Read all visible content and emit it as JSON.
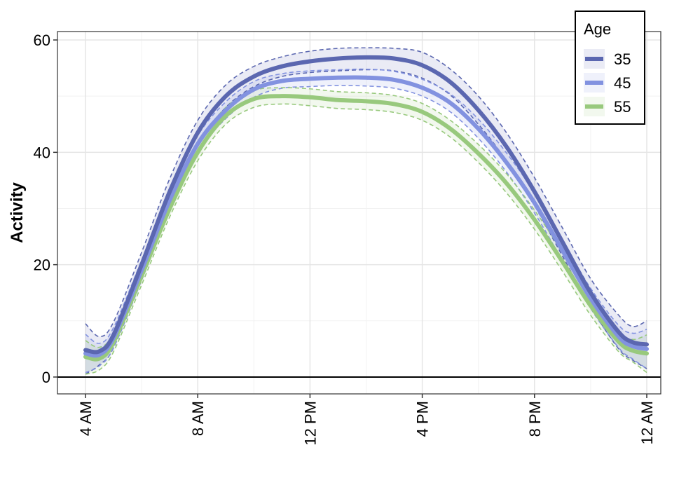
{
  "chart_data": {
    "type": "line",
    "title": "",
    "xlabel": "",
    "ylabel": "Activity",
    "x_unit": "hour of day",
    "xlim": [
      4,
      24
    ],
    "ylim": [
      -3,
      61.5
    ],
    "x_ticks": [
      {
        "value": 4,
        "label": "4 AM"
      },
      {
        "value": 8,
        "label": "8 AM"
      },
      {
        "value": 12,
        "label": "12 PM"
      },
      {
        "value": 16,
        "label": "4 PM"
      },
      {
        "value": 20,
        "label": "8 PM"
      },
      {
        "value": 24,
        "label": "12 AM"
      }
    ],
    "y_ticks": [
      {
        "value": 0,
        "label": "0"
      },
      {
        "value": 20,
        "label": "20"
      },
      {
        "value": 40,
        "label": "40"
      },
      {
        "value": 60,
        "label": "60"
      }
    ],
    "grid": true,
    "reference_line_y": 0,
    "legend": {
      "title": "Age",
      "position": "top-right"
    },
    "x": [
      4,
      4.5,
      5,
      6,
      7,
      8,
      9,
      10,
      11,
      12,
      13,
      14,
      15,
      16,
      17,
      18,
      19,
      20,
      21,
      22,
      23,
      23.5,
      24
    ],
    "series": [
      {
        "name": "35",
        "color": "#5b67b0",
        "values": [
          4.8,
          4.6,
          7.5,
          20,
          33,
          43.5,
          50,
          53.5,
          55.3,
          56.2,
          56.7,
          56.9,
          56.7,
          55.5,
          52.5,
          47.5,
          41,
          33,
          24,
          15,
          8,
          6.2,
          5.8
        ],
        "lower": [
          0.5,
          2.2,
          5.2,
          17.8,
          31,
          41.5,
          48,
          51.7,
          53.5,
          54.2,
          54.5,
          54.7,
          54.5,
          53.2,
          50.2,
          45,
          38.5,
          30.5,
          21.5,
          12.5,
          5,
          3,
          1.5
        ],
        "upper": [
          9.5,
          7.2,
          9.8,
          22.2,
          35.3,
          45.7,
          52,
          55.3,
          57,
          58,
          58.5,
          58.6,
          58.5,
          57.8,
          54.8,
          50,
          43.5,
          35.5,
          26.5,
          17.5,
          11,
          9,
          10
        ]
      },
      {
        "name": "45",
        "color": "#8292e0",
        "values": [
          4.2,
          4.0,
          7,
          19,
          31.5,
          41.5,
          47.5,
          51.2,
          52.7,
          53.1,
          53.3,
          53.3,
          52.9,
          51.5,
          48.8,
          44.2,
          38.2,
          31,
          22.5,
          14,
          7.2,
          5.5,
          5
        ],
        "lower": [
          0.8,
          2.0,
          5.2,
          17.2,
          29.8,
          40,
          46,
          49.8,
          51.4,
          51.7,
          51.9,
          51.8,
          51.4,
          50,
          47.2,
          42.5,
          36.5,
          29.2,
          20.7,
          12.2,
          5.2,
          3.2,
          1.5
        ],
        "upper": [
          7.6,
          6.0,
          8.8,
          20.8,
          33.2,
          43,
          49,
          52.6,
          54,
          54.5,
          54.7,
          54.8,
          54.4,
          53,
          50.4,
          45.9,
          39.9,
          32.8,
          24.3,
          15.8,
          9.2,
          7.8,
          8.5
        ]
      },
      {
        "name": "55",
        "color": "#98c97d",
        "values": [
          3.6,
          3.3,
          6.2,
          18,
          30,
          40,
          46.5,
          49.5,
          50,
          49.8,
          49.3,
          49.1,
          48.6,
          47.2,
          44.2,
          39.8,
          34.5,
          28,
          20.5,
          12.7,
          6.3,
          4.7,
          4.2
        ],
        "lower": [
          0.5,
          1.3,
          4.5,
          16.4,
          28.5,
          38.5,
          45,
          48,
          48.6,
          48.3,
          47.8,
          47.6,
          47.1,
          45.7,
          42.7,
          38.2,
          32.8,
          26.3,
          18.8,
          11,
          4.5,
          2.7,
          0.8
        ],
        "upper": [
          6.5,
          5.3,
          7.9,
          19.6,
          31.5,
          41.5,
          48,
          51,
          51.5,
          51.3,
          50.8,
          50.6,
          50.1,
          48.7,
          45.7,
          41.4,
          36.2,
          29.7,
          22.2,
          14.4,
          8.1,
          6.7,
          7.5
        ]
      }
    ]
  }
}
